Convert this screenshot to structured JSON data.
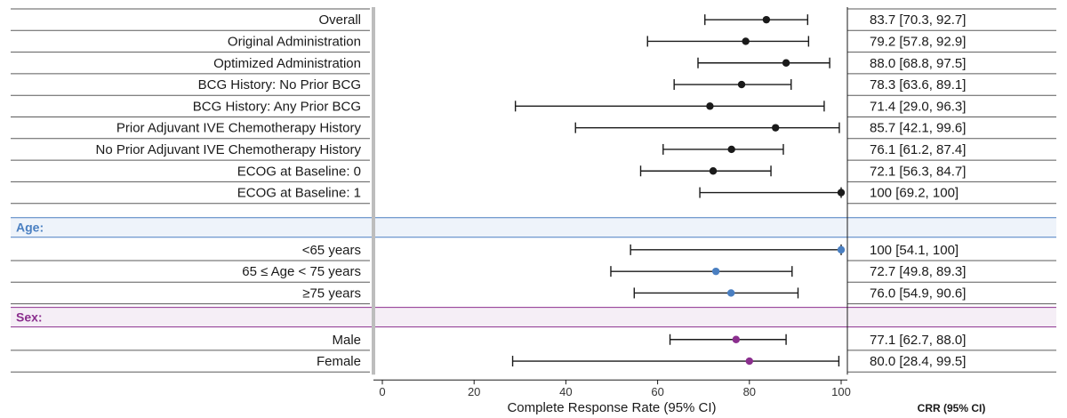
{
  "chart_data": {
    "type": "forest",
    "xlabel": "Complete Response Rate (95% CI)",
    "xlim": [
      0,
      100
    ],
    "x_ticks": [
      "0",
      "20",
      "40",
      "60",
      "80",
      "100"
    ],
    "ci_column_header": "CRR (95% CI)",
    "colors": {
      "default": "#1a1a1a",
      "age": "#4a7fc1",
      "sex": "#8b2f8e",
      "age_header_bg": "#eef3fa",
      "sex_header_bg": "#f5eef6"
    },
    "groups": [
      {
        "header": "",
        "color": "#1a1a1a",
        "rows": [
          {
            "label": "Overall",
            "estimate": 83.7,
            "low": 70.3,
            "high": 92.7,
            "text": "83.7 [70.3, 92.7]"
          },
          {
            "label": "Original Administration",
            "estimate": 79.2,
            "low": 57.8,
            "high": 92.9,
            "text": "79.2 [57.8, 92.9]"
          },
          {
            "label": "Optimized Administration",
            "estimate": 88.0,
            "low": 68.8,
            "high": 97.5,
            "text": "88.0 [68.8, 97.5]"
          },
          {
            "label": "BCG History: No Prior BCG",
            "estimate": 78.3,
            "low": 63.6,
            "high": 89.1,
            "text": "78.3 [63.6, 89.1]"
          },
          {
            "label": "BCG History: Any Prior BCG",
            "estimate": 71.4,
            "low": 29.0,
            "high": 96.3,
            "text": "71.4 [29.0, 96.3]"
          },
          {
            "label": "Prior Adjuvant IVE Chemotherapy History",
            "estimate": 85.7,
            "low": 42.1,
            "high": 99.6,
            "text": "85.7 [42.1, 99.6]"
          },
          {
            "label": "No Prior Adjuvant IVE Chemotherapy History",
            "estimate": 76.1,
            "low": 61.2,
            "high": 87.4,
            "text": "76.1 [61.2, 87.4]"
          },
          {
            "label": "ECOG at Baseline: 0",
            "estimate": 72.1,
            "low": 56.3,
            "high": 84.7,
            "text": "72.1 [56.3, 84.7]"
          },
          {
            "label": "ECOG at Baseline: 1",
            "estimate": 100,
            "low": 69.2,
            "high": 100,
            "text": "100 [69.2, 100]"
          }
        ]
      },
      {
        "header": "Age:",
        "color": "#4a7fc1",
        "rows": [
          {
            "label": "<65 years",
            "estimate": 100,
            "low": 54.1,
            "high": 100,
            "text": "100 [54.1, 100]"
          },
          {
            "label": "65 ≤ Age < 75 years",
            "estimate": 72.7,
            "low": 49.8,
            "high": 89.3,
            "text": "72.7 [49.8, 89.3]"
          },
          {
            "label": "≥75 years",
            "estimate": 76.0,
            "low": 54.9,
            "high": 90.6,
            "text": "76.0 [54.9, 90.6]"
          }
        ]
      },
      {
        "header": "Sex:",
        "color": "#8b2f8e",
        "rows": [
          {
            "label": "Male",
            "estimate": 77.1,
            "low": 62.7,
            "high": 88.0,
            "text": "77.1 [62.7, 88.0]"
          },
          {
            "label": "Female",
            "estimate": 80.0,
            "low": 28.4,
            "high": 99.5,
            "text": "80.0 [28.4, 99.5]"
          }
        ]
      }
    ]
  }
}
